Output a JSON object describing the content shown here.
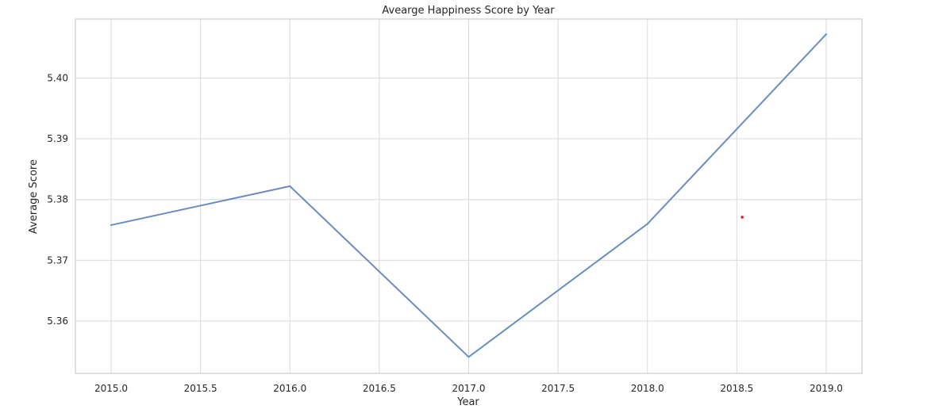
{
  "chart_data": {
    "type": "line",
    "title": "Avearge Happiness Score by Year",
    "xlabel": "Year",
    "ylabel": "Average Score",
    "xlim": [
      2014.8,
      2019.2
    ],
    "ylim": [
      5.3514,
      5.4097
    ],
    "x_ticks": [
      2015.0,
      2015.5,
      2016.0,
      2016.5,
      2017.0,
      2017.5,
      2018.0,
      2018.5,
      2019.0
    ],
    "x_tick_labels": [
      "2015.0",
      "2015.5",
      "2016.0",
      "2016.5",
      "2017.0",
      "2017.5",
      "2018.0",
      "2018.5",
      "2019.0"
    ],
    "y_ticks": [
      5.36,
      5.37,
      5.38,
      5.39,
      5.4
    ],
    "y_tick_labels": [
      "5.36",
      "5.37",
      "5.38",
      "5.39",
      "5.40"
    ],
    "grid": true,
    "series": [
      {
        "color": "#6a8cc2",
        "x": [
          2015,
          2016,
          2017,
          2018,
          2019
        ],
        "y": [
          5.3758,
          5.3822,
          5.3541,
          5.376,
          5.4072
        ]
      }
    ],
    "annotations": [
      {
        "type": "point",
        "x": 2018.53,
        "y": 5.3771,
        "color": "#d62728"
      }
    ]
  }
}
